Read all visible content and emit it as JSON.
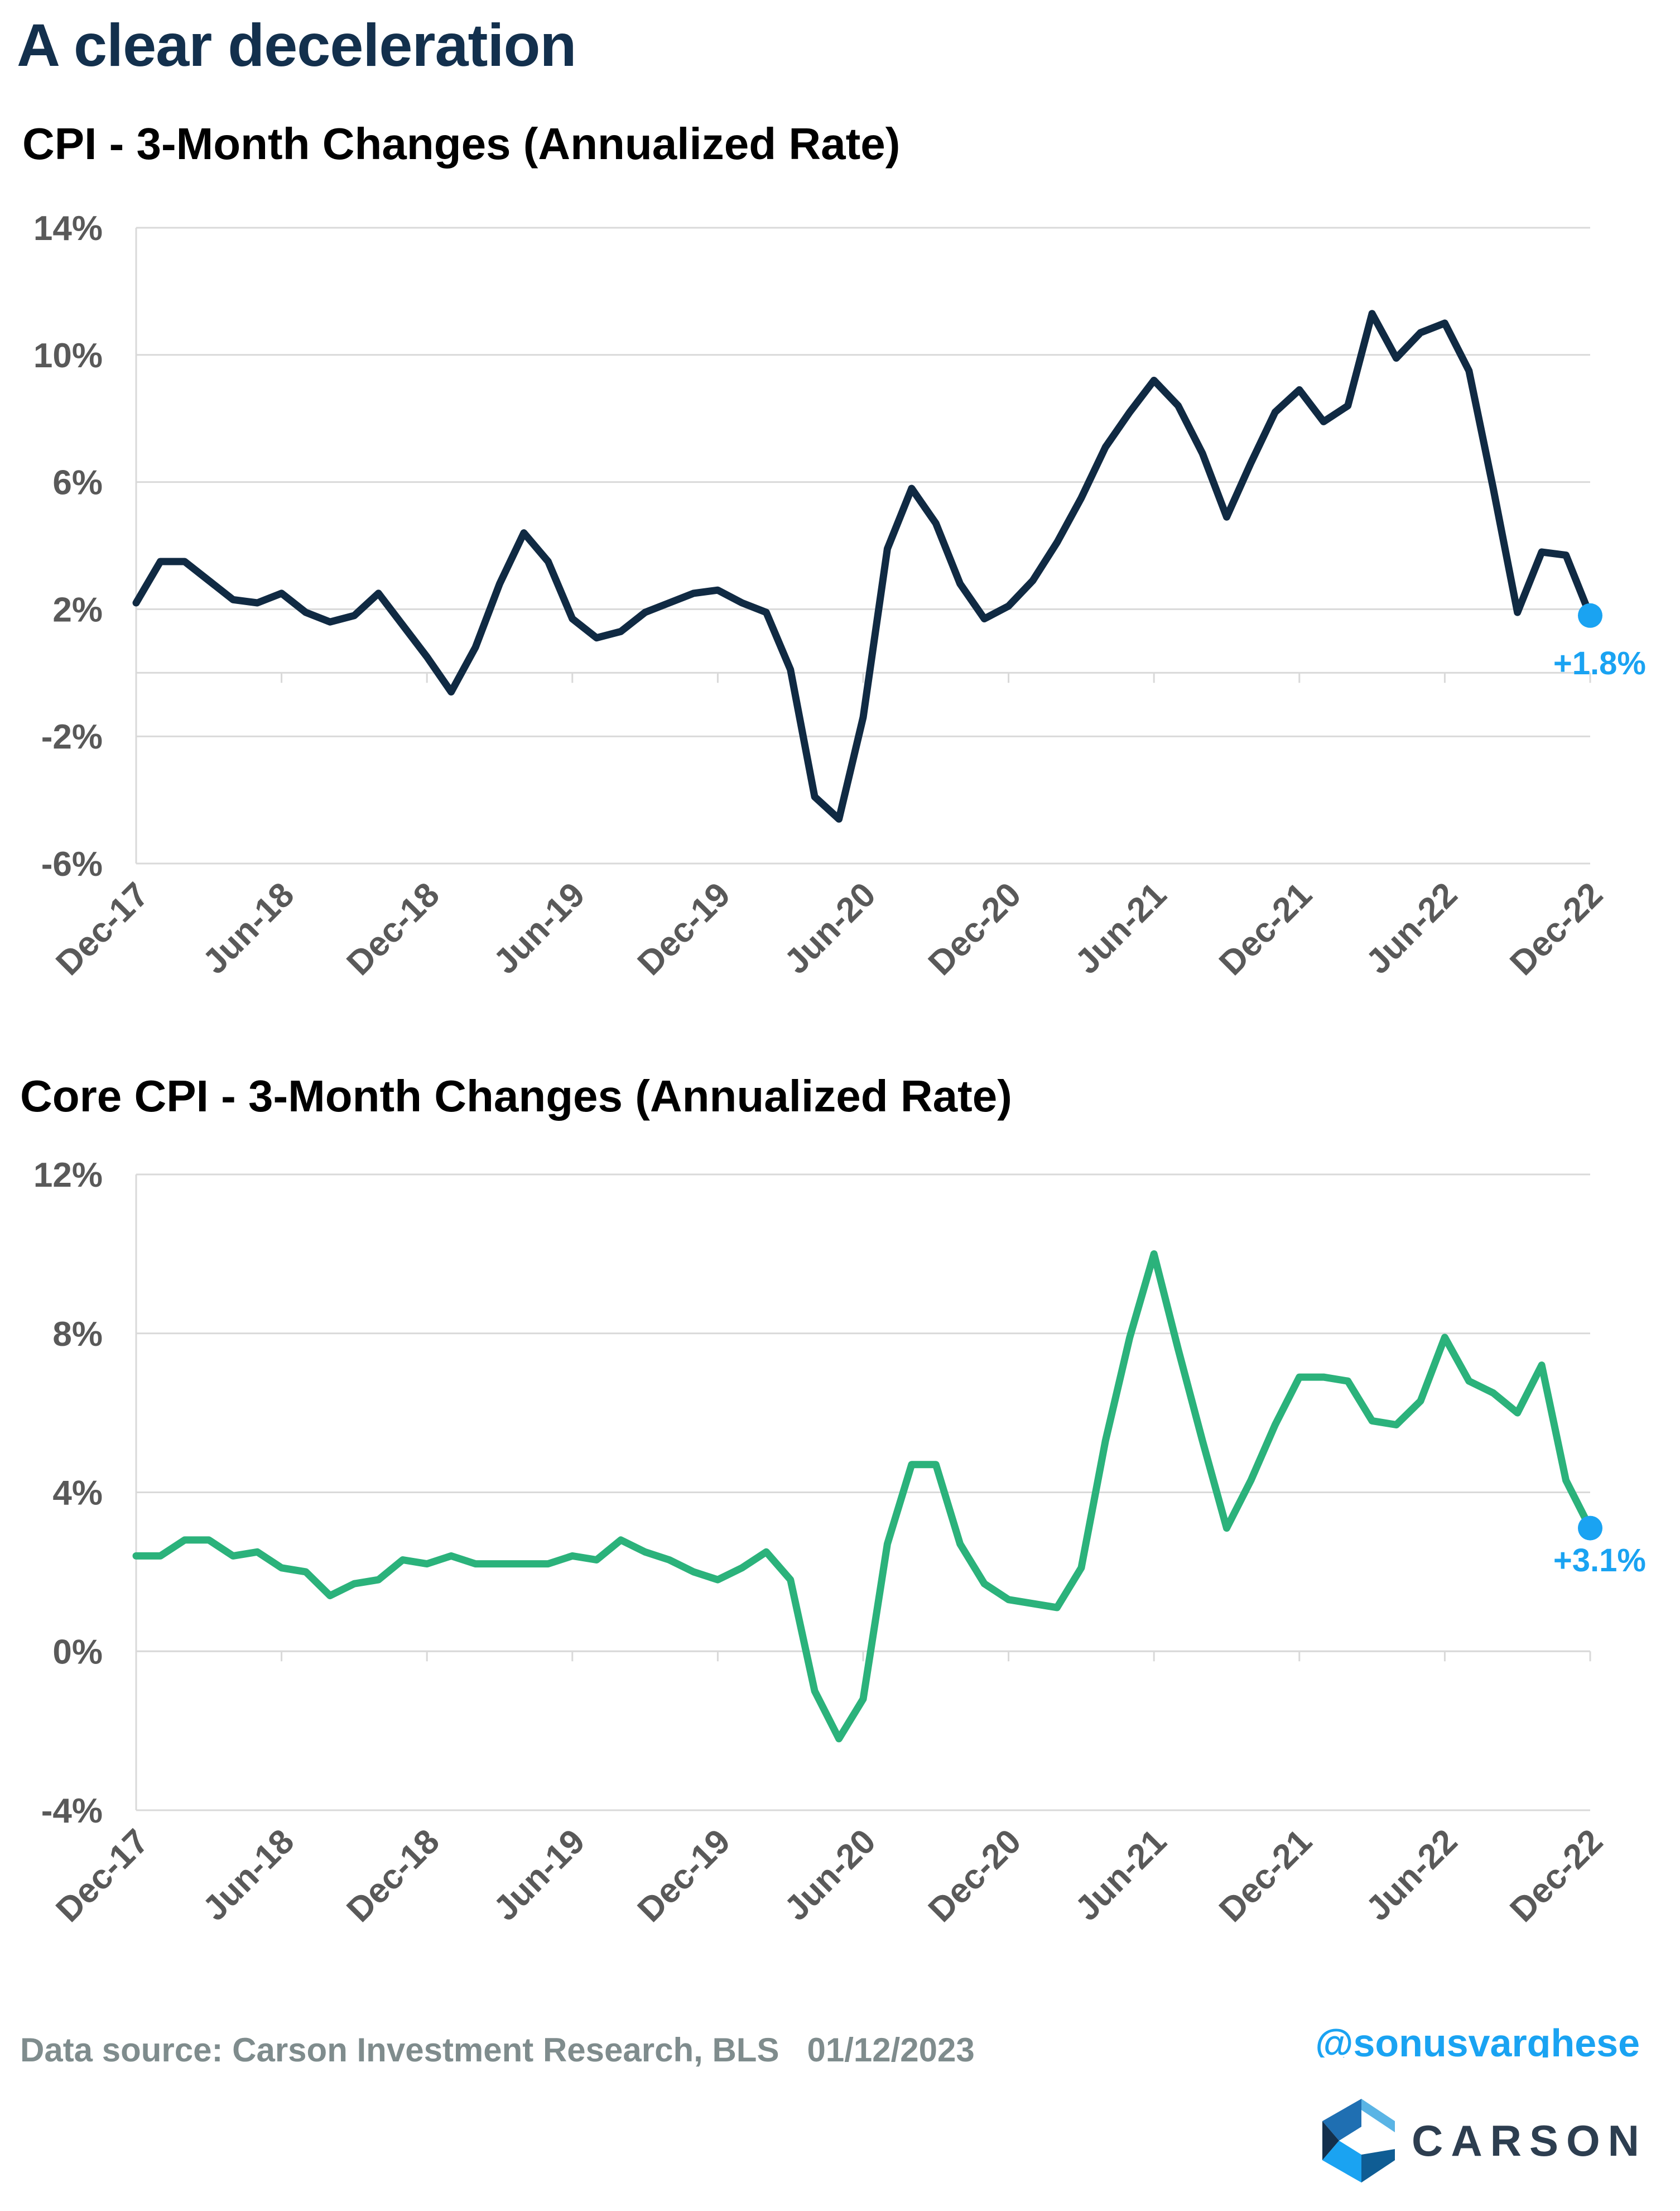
{
  "title": "A clear deceleration",
  "footer": {
    "source": "Data source: Carson Investment Research, BLS   01/12/2023",
    "handle": "@sonusvarghese",
    "logo_text": "CARSON"
  },
  "colors": {
    "title": "#13304d",
    "cpi_line": "#102a43",
    "core_line": "#2bb27b",
    "end_marker": "#1aa3f2",
    "tick_text": "#595959",
    "grid": "#d9d9d9"
  },
  "chart_data": [
    {
      "type": "line",
      "title": "CPI - 3-Month Changes (Annualized Rate)",
      "xlabel": "",
      "ylabel": "",
      "ylim": [
        -6,
        14
      ],
      "yticks": [
        -6,
        -2,
        2,
        6,
        10,
        14
      ],
      "ytick_labels": [
        "-6%",
        "-2%",
        "2%",
        "6%",
        "10%",
        "14%"
      ],
      "xtick_labels": [
        "Dec-17",
        "Jun-18",
        "Dec-18",
        "Jun-19",
        "Dec-19",
        "Jun-20",
        "Dec-20",
        "Jun-21",
        "Dec-21",
        "Jun-22",
        "Dec-22"
      ],
      "grid": true,
      "series": [
        {
          "values": [
            2.2,
            3.5,
            3.5,
            2.9,
            2.3,
            2.2,
            2.5,
            1.9,
            1.6,
            1.8,
            2.5,
            1.5,
            0.5,
            -0.6,
            0.8,
            2.8,
            4.4,
            3.5,
            1.7,
            1.1,
            1.3,
            1.9,
            2.2,
            2.5,
            2.6,
            2.2,
            1.9,
            0.1,
            -3.9,
            -4.6,
            -1.4,
            3.9,
            5.8,
            4.7,
            2.8,
            1.7,
            2.1,
            2.9,
            4.1,
            5.5,
            7.1,
            8.2,
            9.2,
            8.4,
            6.9,
            4.9,
            6.6,
            8.2,
            8.9,
            7.9,
            8.4,
            11.3,
            9.9,
            10.7,
            11.0,
            9.5,
            5.8,
            1.9,
            3.8,
            3.7,
            1.8
          ]
        }
      ],
      "end_label": "+1.8%"
    },
    {
      "type": "line",
      "title": "Core CPI - 3-Month Changes (Annualized Rate)",
      "xlabel": "",
      "ylabel": "",
      "ylim": [
        -4,
        12
      ],
      "yticks": [
        -4,
        0,
        4,
        8,
        12
      ],
      "ytick_labels": [
        "-4%",
        "0%",
        "4%",
        "8%",
        "12%"
      ],
      "xtick_labels": [
        "Dec-17",
        "Jun-18",
        "Dec-18",
        "Jun-19",
        "Dec-19",
        "Jun-20",
        "Dec-20",
        "Jun-21",
        "Dec-21",
        "Jun-22",
        "Dec-22"
      ],
      "grid": true,
      "series": [
        {
          "values": [
            2.4,
            2.4,
            2.8,
            2.8,
            2.4,
            2.5,
            2.1,
            2.0,
            1.4,
            1.7,
            1.8,
            2.3,
            2.2,
            2.4,
            2.2,
            2.2,
            2.2,
            2.2,
            2.4,
            2.3,
            2.8,
            2.5,
            2.3,
            2.0,
            1.8,
            2.1,
            2.5,
            1.8,
            -1.0,
            -2.2,
            -1.2,
            2.7,
            4.7,
            4.7,
            2.7,
            1.7,
            1.3,
            1.2,
            1.1,
            2.1,
            5.3,
            7.9,
            10.0,
            7.6,
            5.3,
            3.1,
            4.3,
            5.7,
            6.9,
            6.9,
            6.8,
            5.8,
            5.7,
            6.3,
            7.9,
            6.8,
            6.5,
            6.0,
            7.2,
            4.3,
            3.1
          ]
        }
      ],
      "end_label": "+3.1%"
    }
  ]
}
